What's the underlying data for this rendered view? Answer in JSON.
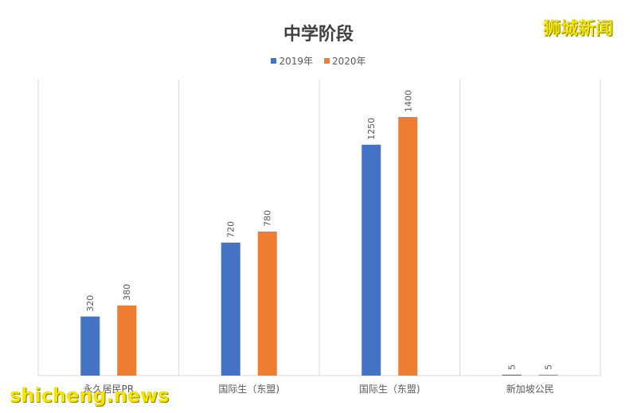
{
  "chart_data": {
    "type": "bar",
    "title": "中学阶段",
    "categories": [
      "永久居民PR",
      "国际生（东盟)",
      "国际生（东盟)",
      "新加坡公民"
    ],
    "series": [
      {
        "name": "2019年",
        "color": "#4472c4",
        "values": [
          320,
          720,
          1250,
          5
        ]
      },
      {
        "name": "2020年",
        "color": "#ed7d31",
        "values": [
          380,
          780,
          1400,
          5
        ]
      }
    ],
    "ylim": [
      0,
      1400
    ],
    "grid": "vertical separators",
    "legend": "top-center",
    "xlabel": "",
    "ylabel": ""
  },
  "watermark": {
    "top": "狮城新闻",
    "bottom": "shicheng.news"
  }
}
